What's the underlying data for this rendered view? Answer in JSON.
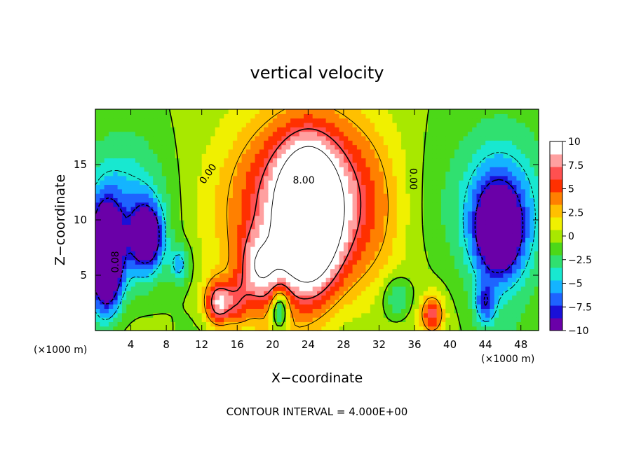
{
  "chart_data": {
    "type": "heatmap",
    "title": "vertical velocity",
    "xlabel": "X−coordinate",
    "ylabel": "Z−coordinate",
    "x_unit_left": "(×1000 m)",
    "x_unit_right": "(×1000 m)",
    "xlim": [
      0,
      50
    ],
    "ylim": [
      0,
      20
    ],
    "x_ticks": [
      4,
      8,
      12,
      16,
      20,
      24,
      28,
      32,
      36,
      40,
      44,
      48
    ],
    "y_ticks": [
      5,
      10,
      15
    ],
    "x_tick_labels": [
      "4",
      "8",
      "12",
      "16",
      "20",
      "24",
      "28",
      "32",
      "36",
      "40",
      "44",
      "48"
    ],
    "y_tick_labels": [
      "5",
      "10",
      "15"
    ],
    "footer": "CONTOUR INTERVAL = 4.000E+00",
    "contour_labels": [
      {
        "text": "0.00",
        "x": 13,
        "y": 14.0,
        "rotate": -55
      },
      {
        "text": "8.00",
        "x": 23.5,
        "y": 13.3,
        "rotate": 0
      },
      {
        "text": "0.00",
        "x": 35.5,
        "y": 13.7,
        "rotate": 90
      },
      {
        "text": "0.08",
        "x": 2.6,
        "y": 6.2,
        "rotate": -90
      }
    ],
    "colorbar": {
      "range": [
        -10,
        10
      ],
      "tick_labels": [
        "10",
        "7.5",
        "5",
        "2.5",
        "0",
        "−2.5",
        "−5",
        "−7.5",
        "−10"
      ],
      "tick_values": [
        10,
        7.5,
        5,
        2.5,
        0,
        -2.5,
        -5,
        -7.5,
        -10
      ],
      "colors": [
        "#6a00a8",
        "#1a10d8",
        "#1e64ff",
        "#14b4ff",
        "#18e8d0",
        "#30e070",
        "#4cd818",
        "#a8e800",
        "#f0f000",
        "#ffc000",
        "#ff8000",
        "#ff3000",
        "#ff5050",
        "#ffa0a0",
        "#ffffff"
      ]
    },
    "features": [
      {
        "x": 24,
        "z": 10.0,
        "sx": 2.1,
        "sz": 4.0,
        "amp": 15
      },
      {
        "x": 24.5,
        "z": 12,
        "sx": 5.5,
        "sz": 5.5,
        "amp": 9
      },
      {
        "x": 23,
        "z": 9,
        "sx": 9,
        "sz": 7,
        "amp": 3.5
      },
      {
        "x": 18.5,
        "z": 5.5,
        "sx": 1.6,
        "sz": 2.2,
        "amp": 7
      },
      {
        "x": 13.8,
        "z": 2.5,
        "sx": 1.1,
        "sz": 1.5,
        "amp": 9
      },
      {
        "x": 16,
        "z": 2.5,
        "sx": 1.0,
        "sz": 1.5,
        "amp": 4
      },
      {
        "x": 38,
        "z": 1.6,
        "sx": 0.9,
        "sz": 1.2,
        "amp": 7
      },
      {
        "x": 20.8,
        "z": 1.9,
        "sx": 0.7,
        "sz": 1.3,
        "amp": -8
      },
      {
        "x": 1.2,
        "z": 6.5,
        "sx": 1.2,
        "sz": 3.2,
        "amp": -16
      },
      {
        "x": 5.8,
        "z": 8.5,
        "sx": 1.2,
        "sz": 2.0,
        "amp": -11
      },
      {
        "x": 3.5,
        "z": 10,
        "sx": 3.5,
        "sz": 5,
        "amp": -6
      },
      {
        "x": 45.5,
        "z": 9,
        "sx": 1.8,
        "sz": 2.8,
        "amp": -11
      },
      {
        "x": 45.5,
        "z": 11,
        "sx": 3.8,
        "sz": 5,
        "amp": -6
      },
      {
        "x": 44,
        "z": 2.5,
        "sx": 0.8,
        "sz": 1.3,
        "amp": -6
      },
      {
        "x": 34,
        "z": 3,
        "sx": 1.2,
        "sz": 1.4,
        "amp": -4
      },
      {
        "x": 37,
        "z": 10,
        "sx": 2.5,
        "sz": 6,
        "amp": -1.5
      },
      {
        "x": 9.5,
        "z": 6,
        "sx": 0.8,
        "sz": 1.2,
        "amp": -5
      }
    ]
  }
}
